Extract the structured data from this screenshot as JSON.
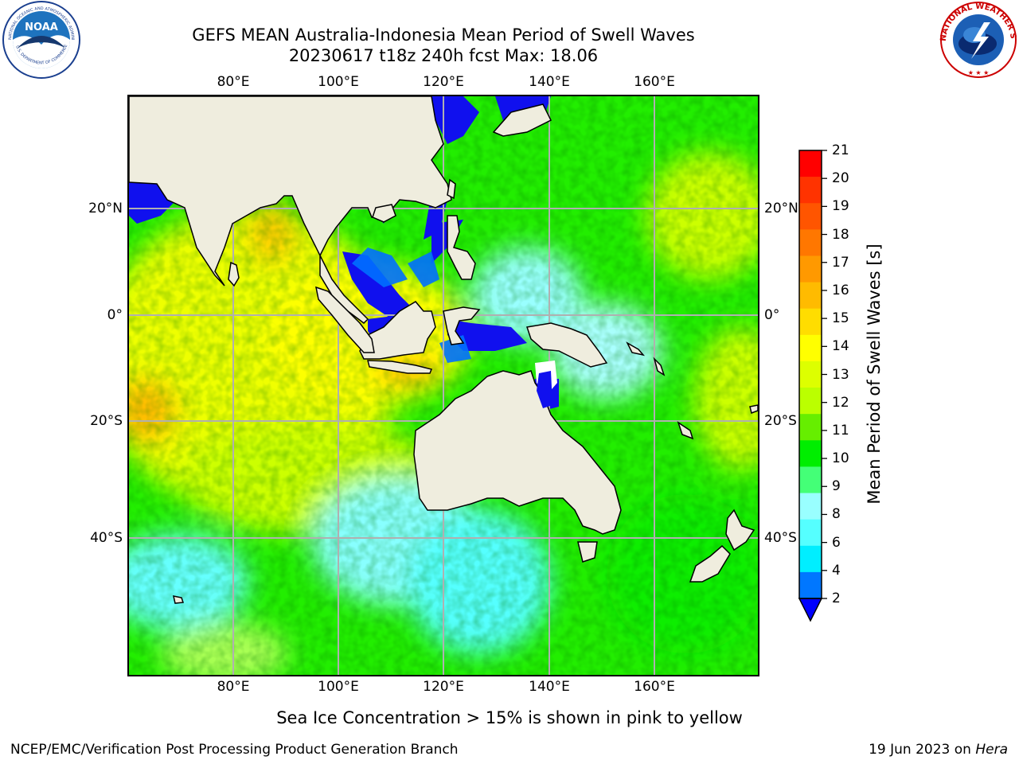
{
  "header": {
    "title": "GEFS MEAN Australia-Indonesia Mean Period of Swell Waves",
    "subtitle": "20230617 t18z 240h fcst   Max: 18.06"
  },
  "map": {
    "lon_labels": [
      "80°E",
      "100°E",
      "120°E",
      "140°E",
      "160°E"
    ],
    "lat_labels": [
      "20°N",
      "0°",
      "20°S",
      "40°S"
    ],
    "lon_range": [
      60,
      180
    ],
    "lat_range": [
      40,
      -70
    ],
    "grid": true,
    "land_color": "#efedde"
  },
  "colorbar": {
    "label": "Mean Period of Swell Waves [s]",
    "ticks": [
      "21",
      "20",
      "19",
      "18",
      "17",
      "16",
      "15",
      "14",
      "13",
      "12",
      "11",
      "10",
      "9",
      "8",
      "6",
      "4",
      "2"
    ],
    "colors_top_to_bottom": [
      "#ff0000",
      "#ff3300",
      "#ff5500",
      "#ff7700",
      "#ff9900",
      "#ffbb00",
      "#ffdd00",
      "#ffff00",
      "#ddff00",
      "#bbff00",
      "#66ee00",
      "#00ee00",
      "#44ff77",
      "#99ffff",
      "#55ffff",
      "#00eeff",
      "#0077ff"
    ],
    "extend_color": "#0000ff"
  },
  "footer": {
    "note": "Sea Ice Concentration > 15% is shown in pink to yellow",
    "left": "NCEP/EMC/Verification Post Processing Product Generation Branch",
    "date": "19 Jun 2023 on ",
    "machine": "Hera"
  },
  "logos": {
    "noaa_text": "NOAA",
    "noaa_ring": "NATIONAL OCEANIC AND ATMOSPHERIC ADMINISTRATION",
    "noaa_ring_bottom": "U.S. DEPARTMENT OF COMMERCE",
    "nws_ring": "NATIONAL WEATHER SERVICE"
  }
}
